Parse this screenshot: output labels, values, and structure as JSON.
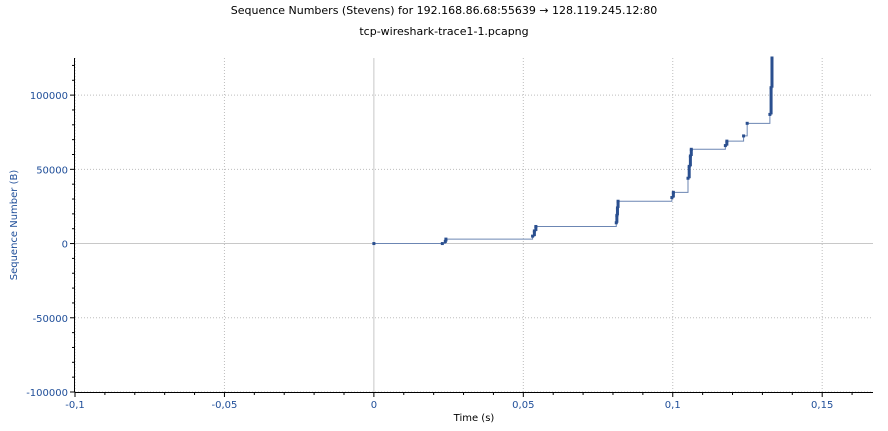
{
  "title": "Sequence Numbers (Stevens) for 192.168.86.68:55639 → 128.119.245.12:80",
  "subtitle": "tcp-wireshark-trace1-1.pcapng",
  "chart_data": {
    "type": "scatter",
    "title": "Sequence Numbers (Stevens) for 192.168.86.68:55639 → 128.119.245.12:80",
    "subtitle": "tcp-wireshark-trace1-1.pcapng",
    "xlabel": "Time (s)",
    "ylabel": "Sequence Number (B)",
    "xlim": [
      -0.1,
      0.167
    ],
    "ylim": [
      -100000,
      125000
    ],
    "x_ticks": [
      -0.1,
      -0.05,
      0,
      0.05,
      0.1,
      0.15
    ],
    "x_tick_labels": [
      "-0,1",
      "-0,05",
      "0",
      "0,05",
      "0,1",
      "0,15"
    ],
    "y_ticks": [
      -100000,
      -50000,
      0,
      50000,
      100000
    ],
    "y_tick_labels": [
      "-100000",
      "-50000",
      "0",
      "50000",
      "100000"
    ],
    "grid": true,
    "series_color": "#2a4f8f",
    "series": [
      {
        "x": [
          0.0,
          0.0229,
          0.0239,
          0.0241,
          0.0531,
          0.0537,
          0.0542,
          0.0811,
          0.0813,
          0.0815,
          0.0817,
          0.0997,
          0.1002,
          0.1051,
          0.1055,
          0.1059,
          0.1062,
          0.1176,
          0.1181,
          0.1237,
          0.1249,
          0.1325,
          0.1329,
          0.1332
        ],
        "y": [
          0,
          0,
          1400,
          3000,
          5000,
          8500,
          11500,
          14000,
          19000,
          24000,
          28500,
          31000,
          34500,
          44000,
          52000,
          59000,
          63500,
          66000,
          69000,
          72500,
          81000,
          87000,
          105000,
          125000
        ]
      }
    ]
  }
}
